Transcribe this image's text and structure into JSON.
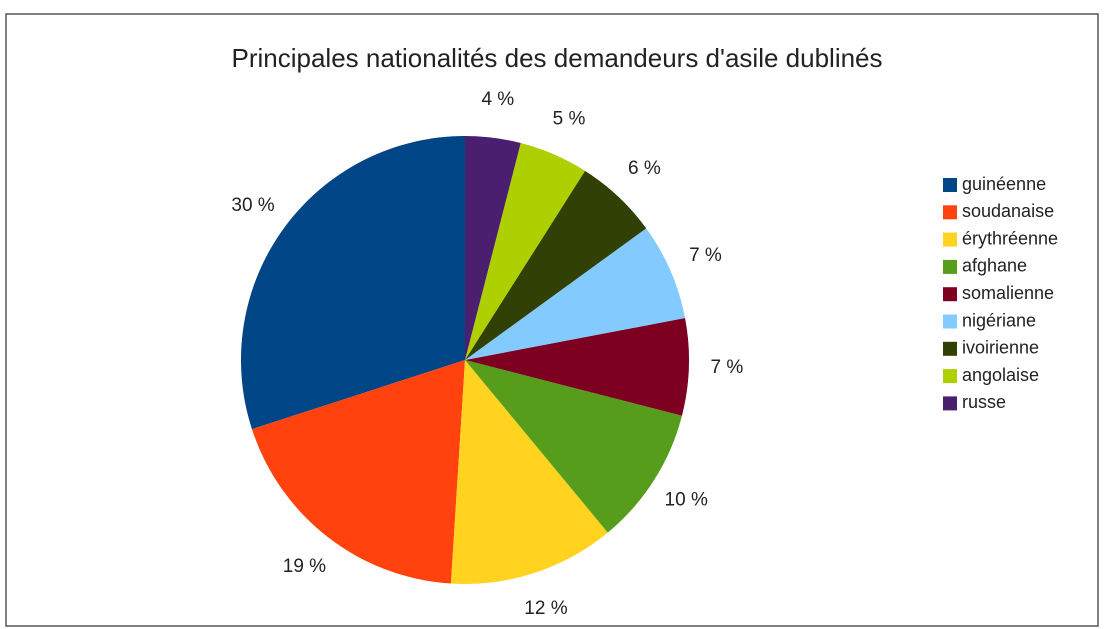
{
  "chart_data": {
    "type": "pie",
    "title": "Principales nationalités des demandeurs d'asile dublinés",
    "categories": [
      "guinéenne",
      "soudanaise",
      "érythréenne",
      "afghane",
      "somalienne",
      "nigériane",
      "ivoirienne",
      "angolaise",
      "russe"
    ],
    "values": [
      30,
      19,
      12,
      10,
      7,
      7,
      6,
      5,
      4
    ],
    "value_labels": [
      "30 %",
      "19 %",
      "12 %",
      "10 %",
      "7 %",
      "7 %",
      "6 %",
      "5 %",
      "4 %"
    ],
    "colors": [
      "#004586",
      "#ff420e",
      "#ffd320",
      "#579d1c",
      "#7e0021",
      "#83caff",
      "#314004",
      "#aecf00",
      "#4b1f6f"
    ],
    "legend": "right"
  }
}
